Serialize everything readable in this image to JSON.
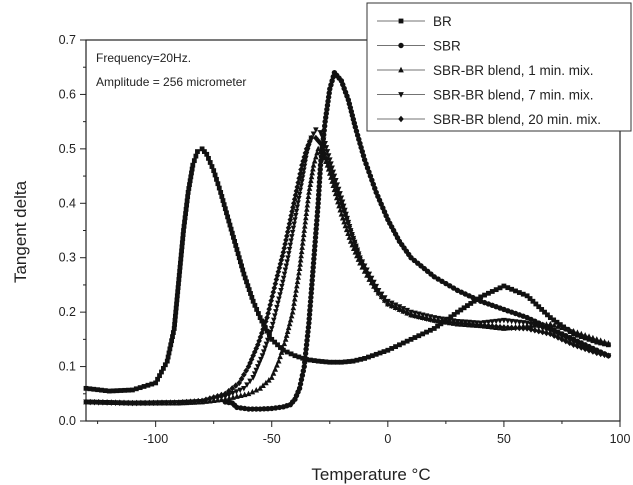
{
  "chart_data": {
    "type": "line",
    "xlabel": "Temperature °C",
    "ylabel": "Tangent delta",
    "xlim": [
      -130,
      100
    ],
    "ylim": [
      0.0,
      0.7
    ],
    "x_ticks": [
      -100,
      -50,
      0,
      50,
      100
    ],
    "x_tick_labels": [
      "-100",
      "-50",
      "0",
      "50",
      "100"
    ],
    "y_ticks": [
      0.0,
      0.1,
      0.2,
      0.3,
      0.4,
      0.5,
      0.6,
      0.7
    ],
    "y_tick_labels": [
      "0.0",
      "0.1",
      "0.2",
      "0.3",
      "0.4",
      "0.5",
      "0.6",
      "0.7"
    ],
    "grid": false,
    "legend_position": "top-right",
    "annotations": [
      "Frequency=20Hz.",
      "Amplitude = 256 micrometer"
    ],
    "series": [
      {
        "name": "BR",
        "marker": "square",
        "x": [
          -130,
          -120,
          -110,
          -100,
          -95,
          -92,
          -90,
          -88,
          -86,
          -84,
          -82,
          -80,
          -78,
          -75,
          -72,
          -70,
          -66,
          -62,
          -58,
          -55,
          -52,
          -50,
          -45,
          -40,
          -35,
          -30,
          -25,
          -20,
          -15,
          -10,
          0,
          10,
          20,
          30,
          40,
          50,
          60,
          70,
          80,
          90,
          95
        ],
        "y": [
          0.06,
          0.055,
          0.057,
          0.07,
          0.11,
          0.17,
          0.26,
          0.35,
          0.42,
          0.47,
          0.495,
          0.5,
          0.49,
          0.46,
          0.42,
          0.39,
          0.33,
          0.27,
          0.22,
          0.19,
          0.165,
          0.15,
          0.13,
          0.12,
          0.113,
          0.11,
          0.108,
          0.108,
          0.11,
          0.115,
          0.13,
          0.15,
          0.17,
          0.2,
          0.228,
          0.248,
          0.23,
          0.19,
          0.16,
          0.145,
          0.14
        ]
      },
      {
        "name": "SBR",
        "marker": "circle",
        "x": [
          -70,
          -67,
          -65,
          -60,
          -55,
          -50,
          -45,
          -42,
          -40,
          -38,
          -36,
          -34,
          -32,
          -30,
          -29,
          -27,
          -25,
          -23,
          -20,
          -17,
          -14,
          -10,
          -5,
          0,
          5,
          10,
          20,
          30,
          40,
          50,
          60,
          70,
          80,
          90,
          95
        ],
        "y": [
          0.035,
          0.033,
          0.025,
          0.022,
          0.022,
          0.023,
          0.026,
          0.03,
          0.04,
          0.06,
          0.1,
          0.18,
          0.29,
          0.4,
          0.47,
          0.55,
          0.61,
          0.64,
          0.625,
          0.59,
          0.54,
          0.48,
          0.42,
          0.37,
          0.33,
          0.3,
          0.265,
          0.24,
          0.22,
          0.205,
          0.19,
          0.17,
          0.15,
          0.13,
          0.12
        ]
      },
      {
        "name": "SBR-BR blend, 1 min. mix.",
        "marker": "triangle-up",
        "x": [
          -130,
          -110,
          -90,
          -80,
          -70,
          -60,
          -55,
          -50,
          -47,
          -44,
          -41,
          -38,
          -36,
          -34,
          -32,
          -30,
          -28,
          -26,
          -24,
          -22,
          -20,
          -16,
          -12,
          -8,
          -4,
          0,
          10,
          20,
          30,
          40,
          50,
          60,
          70,
          80,
          90,
          95
        ],
        "y": [
          0.035,
          0.033,
          0.033,
          0.035,
          0.04,
          0.05,
          0.06,
          0.08,
          0.11,
          0.15,
          0.2,
          0.28,
          0.35,
          0.42,
          0.47,
          0.5,
          0.49,
          0.47,
          0.44,
          0.41,
          0.38,
          0.33,
          0.29,
          0.26,
          0.235,
          0.215,
          0.195,
          0.185,
          0.178,
          0.175,
          0.17,
          0.175,
          0.178,
          0.165,
          0.15,
          0.143
        ]
      },
      {
        "name": "SBR-BR blend, 7 min. mix.",
        "marker": "triangle-down",
        "x": [
          -130,
          -110,
          -90,
          -80,
          -70,
          -62,
          -58,
          -54,
          -50,
          -46,
          -43,
          -40,
          -37,
          -35,
          -33,
          -31,
          -29,
          -27,
          -25,
          -23,
          -20,
          -16,
          -12,
          -8,
          -4,
          0,
          10,
          20,
          30,
          40,
          50,
          60,
          70,
          80,
          90,
          95
        ],
        "y": [
          0.035,
          0.033,
          0.034,
          0.036,
          0.045,
          0.06,
          0.08,
          0.12,
          0.17,
          0.24,
          0.3,
          0.37,
          0.44,
          0.49,
          0.52,
          0.535,
          0.53,
          0.51,
          0.48,
          0.45,
          0.41,
          0.35,
          0.3,
          0.27,
          0.24,
          0.22,
          0.2,
          0.19,
          0.183,
          0.18,
          0.185,
          0.18,
          0.165,
          0.145,
          0.125,
          0.12
        ]
      },
      {
        "name": "SBR-BR blend, 20 min. mix.",
        "marker": "diamond",
        "x": [
          -130,
          -110,
          -90,
          -80,
          -70,
          -64,
          -60,
          -56,
          -52,
          -48,
          -45,
          -42,
          -39,
          -37,
          -35,
          -33,
          -31,
          -29,
          -27,
          -25,
          -23,
          -20,
          -16,
          -12,
          -8,
          -4,
          0,
          10,
          20,
          30,
          40,
          50,
          60,
          70,
          80,
          90,
          95
        ],
        "y": [
          0.035,
          0.033,
          0.034,
          0.037,
          0.05,
          0.07,
          0.1,
          0.14,
          0.19,
          0.26,
          0.31,
          0.37,
          0.43,
          0.47,
          0.5,
          0.52,
          0.52,
          0.51,
          0.49,
          0.465,
          0.44,
          0.4,
          0.35,
          0.3,
          0.265,
          0.235,
          0.215,
          0.195,
          0.185,
          0.18,
          0.176,
          0.172,
          0.17,
          0.16,
          0.14,
          0.125,
          0.12
        ]
      }
    ]
  }
}
